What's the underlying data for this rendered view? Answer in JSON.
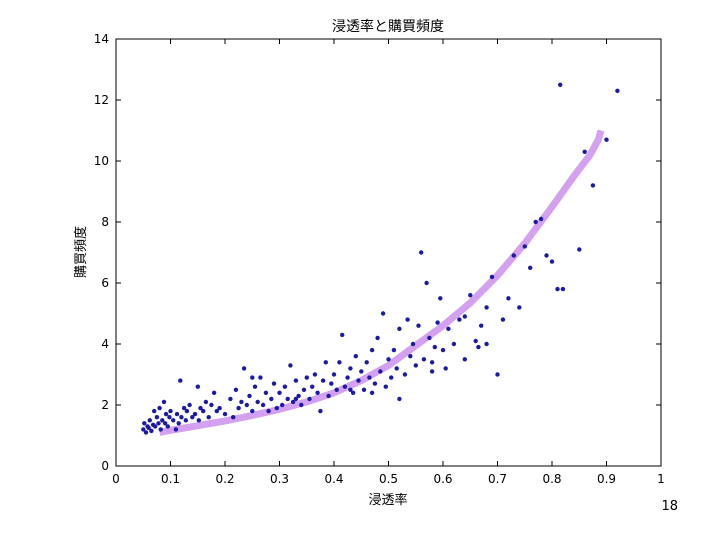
{
  "page_number": "18",
  "chart_data": {
    "type": "scatter",
    "title": "浸透率と購買頻度",
    "xlabel": "浸透率",
    "ylabel": "購買頻度",
    "xlim": [
      0,
      1
    ],
    "ylim": [
      0,
      14
    ],
    "xticks": [
      0,
      0.1,
      0.2,
      0.3,
      0.4,
      0.5,
      0.6,
      0.7,
      0.8,
      0.9,
      1
    ],
    "xtick_labels": [
      "0",
      "0.1",
      "0.2",
      "0.3",
      "0.4",
      "0.5",
      "0.6",
      "0.7",
      "0.8",
      "0.9",
      "1"
    ],
    "yticks": [
      0,
      2,
      4,
      6,
      8,
      10,
      12,
      14
    ],
    "ytick_labels": [
      "0",
      "2",
      "4",
      "6",
      "8",
      "10",
      "12",
      "14"
    ],
    "grid": false,
    "colors": {
      "points": "#1a1aa6",
      "curve": "#d4a0f0"
    },
    "series": [
      {
        "type": "scatter",
        "points": [
          [
            0.05,
            1.2
          ],
          [
            0.052,
            1.4
          ],
          [
            0.055,
            1.1
          ],
          [
            0.058,
            1.3
          ],
          [
            0.06,
            1.25
          ],
          [
            0.062,
            1.5
          ],
          [
            0.065,
            1.15
          ],
          [
            0.068,
            1.35
          ],
          [
            0.07,
            1.8
          ],
          [
            0.072,
            1.3
          ],
          [
            0.075,
            1.6
          ],
          [
            0.078,
            1.4
          ],
          [
            0.08,
            1.9
          ],
          [
            0.082,
            1.2
          ],
          [
            0.085,
            1.5
          ],
          [
            0.088,
            2.1
          ],
          [
            0.09,
            1.4
          ],
          [
            0.092,
            1.7
          ],
          [
            0.095,
            1.3
          ],
          [
            0.098,
            1.6
          ],
          [
            0.1,
            1.8
          ],
          [
            0.105,
            1.5
          ],
          [
            0.11,
            1.2
          ],
          [
            0.112,
            1.7
          ],
          [
            0.115,
            1.4
          ],
          [
            0.118,
            2.8
          ],
          [
            0.12,
            1.6
          ],
          [
            0.125,
            1.9
          ],
          [
            0.128,
            1.5
          ],
          [
            0.13,
            1.8
          ],
          [
            0.135,
            2.0
          ],
          [
            0.14,
            1.6
          ],
          [
            0.145,
            1.7
          ],
          [
            0.15,
            2.6
          ],
          [
            0.152,
            1.5
          ],
          [
            0.155,
            1.9
          ],
          [
            0.16,
            1.8
          ],
          [
            0.165,
            2.1
          ],
          [
            0.17,
            1.6
          ],
          [
            0.175,
            2.0
          ],
          [
            0.18,
            2.4
          ],
          [
            0.185,
            1.8
          ],
          [
            0.19,
            1.9
          ],
          [
            0.2,
            1.7
          ],
          [
            0.21,
            2.2
          ],
          [
            0.215,
            1.6
          ],
          [
            0.22,
            2.5
          ],
          [
            0.225,
            1.9
          ],
          [
            0.23,
            2.1
          ],
          [
            0.235,
            3.2
          ],
          [
            0.24,
            2.0
          ],
          [
            0.245,
            2.3
          ],
          [
            0.25,
            1.8
          ],
          [
            0.255,
            2.6
          ],
          [
            0.26,
            2.1
          ],
          [
            0.265,
            2.9
          ],
          [
            0.27,
            2.0
          ],
          [
            0.275,
            2.4
          ],
          [
            0.28,
            1.8
          ],
          [
            0.285,
            2.2
          ],
          [
            0.29,
            2.7
          ],
          [
            0.295,
            1.9
          ],
          [
            0.3,
            2.4
          ],
          [
            0.305,
            2.0
          ],
          [
            0.31,
            2.6
          ],
          [
            0.315,
            2.2
          ],
          [
            0.32,
            3.3
          ],
          [
            0.325,
            2.1
          ],
          [
            0.33,
            2.8
          ],
          [
            0.335,
            2.3
          ],
          [
            0.34,
            2.0
          ],
          [
            0.345,
            2.5
          ],
          [
            0.35,
            2.9
          ],
          [
            0.355,
            2.2
          ],
          [
            0.36,
            2.6
          ],
          [
            0.365,
            3.0
          ],
          [
            0.37,
            2.4
          ],
          [
            0.375,
            1.8
          ],
          [
            0.38,
            2.8
          ],
          [
            0.385,
            3.4
          ],
          [
            0.39,
            2.3
          ],
          [
            0.395,
            2.7
          ],
          [
            0.4,
            3.0
          ],
          [
            0.405,
            2.5
          ],
          [
            0.41,
            3.4
          ],
          [
            0.415,
            4.3
          ],
          [
            0.42,
            2.6
          ],
          [
            0.425,
            2.9
          ],
          [
            0.43,
            3.2
          ],
          [
            0.435,
            2.4
          ],
          [
            0.44,
            3.6
          ],
          [
            0.445,
            2.8
          ],
          [
            0.45,
            3.1
          ],
          [
            0.455,
            2.5
          ],
          [
            0.46,
            3.4
          ],
          [
            0.465,
            2.9
          ],
          [
            0.47,
            3.8
          ],
          [
            0.475,
            2.7
          ],
          [
            0.48,
            4.2
          ],
          [
            0.485,
            3.1
          ],
          [
            0.49,
            5.0
          ],
          [
            0.495,
            2.6
          ],
          [
            0.5,
            3.5
          ],
          [
            0.505,
            2.9
          ],
          [
            0.51,
            3.8
          ],
          [
            0.515,
            3.2
          ],
          [
            0.52,
            4.5
          ],
          [
            0.53,
            3.0
          ],
          [
            0.535,
            4.8
          ],
          [
            0.54,
            3.6
          ],
          [
            0.545,
            4.0
          ],
          [
            0.55,
            3.3
          ],
          [
            0.555,
            4.6
          ],
          [
            0.56,
            7.0
          ],
          [
            0.565,
            3.5
          ],
          [
            0.57,
            6.0
          ],
          [
            0.575,
            4.2
          ],
          [
            0.58,
            3.1
          ],
          [
            0.585,
            3.9
          ],
          [
            0.59,
            4.7
          ],
          [
            0.595,
            5.5
          ],
          [
            0.6,
            3.8
          ],
          [
            0.605,
            3.2
          ],
          [
            0.61,
            4.5
          ],
          [
            0.62,
            4.0
          ],
          [
            0.63,
            4.8
          ],
          [
            0.64,
            3.5
          ],
          [
            0.65,
            5.6
          ],
          [
            0.66,
            4.1
          ],
          [
            0.665,
            3.9
          ],
          [
            0.67,
            4.6
          ],
          [
            0.68,
            5.2
          ],
          [
            0.69,
            6.2
          ],
          [
            0.7,
            3.0
          ],
          [
            0.71,
            4.8
          ],
          [
            0.72,
            5.5
          ],
          [
            0.73,
            6.9
          ],
          [
            0.74,
            5.2
          ],
          [
            0.75,
            7.2
          ],
          [
            0.76,
            6.5
          ],
          [
            0.77,
            8.0
          ],
          [
            0.78,
            8.1
          ],
          [
            0.79,
            6.9
          ],
          [
            0.8,
            6.7
          ],
          [
            0.81,
            5.8
          ],
          [
            0.815,
            12.5
          ],
          [
            0.82,
            5.8
          ],
          [
            0.85,
            7.1
          ],
          [
            0.86,
            10.3
          ],
          [
            0.875,
            9.2
          ],
          [
            0.9,
            10.7
          ],
          [
            0.92,
            12.3
          ],
          [
            0.25,
            2.9
          ],
          [
            0.33,
            2.2
          ],
          [
            0.43,
            2.5
          ],
          [
            0.47,
            2.4
          ],
          [
            0.52,
            2.2
          ],
          [
            0.58,
            3.4
          ],
          [
            0.64,
            4.9
          ],
          [
            0.68,
            4.0
          ]
        ]
      },
      {
        "type": "line",
        "points": [
          [
            0.08,
            1.1
          ],
          [
            0.1,
            1.17
          ],
          [
            0.12,
            1.23
          ],
          [
            0.15,
            1.32
          ],
          [
            0.2,
            1.48
          ],
          [
            0.25,
            1.66
          ],
          [
            0.3,
            1.86
          ],
          [
            0.35,
            2.1
          ],
          [
            0.4,
            2.4
          ],
          [
            0.45,
            2.8
          ],
          [
            0.5,
            3.3
          ],
          [
            0.55,
            3.95
          ],
          [
            0.6,
            4.6
          ],
          [
            0.65,
            5.35
          ],
          [
            0.7,
            6.25
          ],
          [
            0.75,
            7.3
          ],
          [
            0.8,
            8.5
          ],
          [
            0.84,
            9.5
          ],
          [
            0.87,
            10.2
          ],
          [
            0.885,
            10.7
          ],
          [
            0.89,
            11.0
          ]
        ]
      }
    ]
  }
}
